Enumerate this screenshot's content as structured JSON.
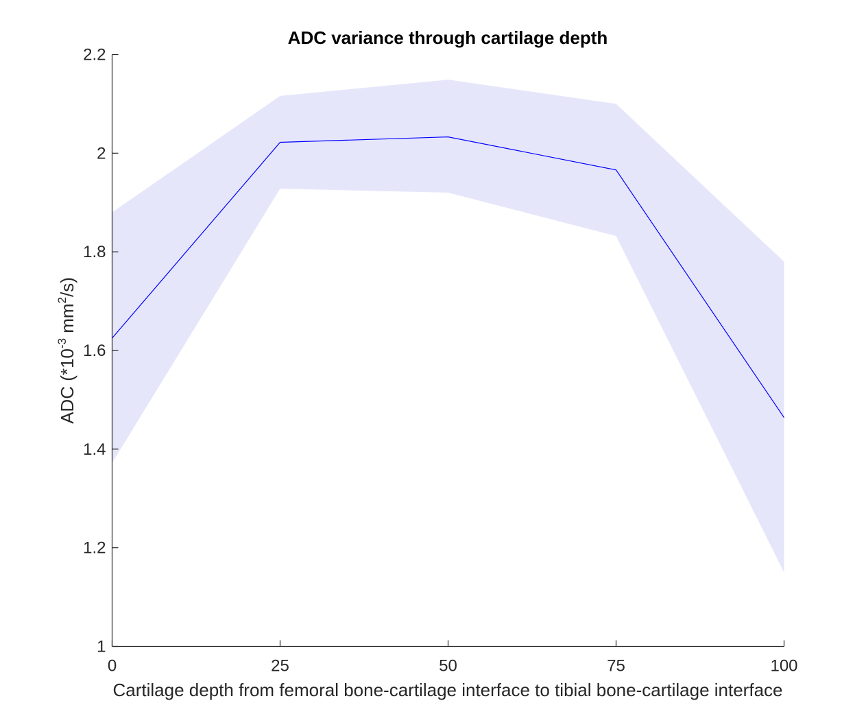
{
  "chart_data": {
    "type": "area",
    "title": "ADC variance through cartilage depth",
    "xlabel": "Cartilage depth from femoral bone-cartilage interface to tibial bone-cartilage interface",
    "ylabel": {
      "prefix": "ADC (*10",
      "exponent1": "-3",
      "middle": " mm",
      "exponent2": "2",
      "suffix": "/s)"
    },
    "xlim": [
      0,
      100
    ],
    "ylim": [
      1,
      2.2
    ],
    "xticks": [
      0,
      25,
      50,
      75,
      100
    ],
    "xtick_labels": [
      "0",
      "25",
      "50",
      "75",
      "100"
    ],
    "yticks": [
      1,
      1.2,
      1.4,
      1.6,
      1.8,
      2,
      2.2
    ],
    "ytick_labels": [
      "1",
      "1.2",
      "1.4",
      "1.6",
      "1.8",
      "2",
      "2.2"
    ],
    "grid": false,
    "x": [
      0,
      25,
      50,
      75,
      100
    ],
    "series": [
      {
        "mean": [
          1.625,
          2.022,
          2.033,
          1.966,
          1.464
        ],
        "upper": [
          1.88,
          2.116,
          2.149,
          2.1,
          1.78
        ],
        "lower": [
          1.372,
          1.928,
          1.92,
          1.832,
          1.15
        ],
        "line_color": "#0000ff",
        "band_color": "#e6e6fb"
      }
    ]
  }
}
